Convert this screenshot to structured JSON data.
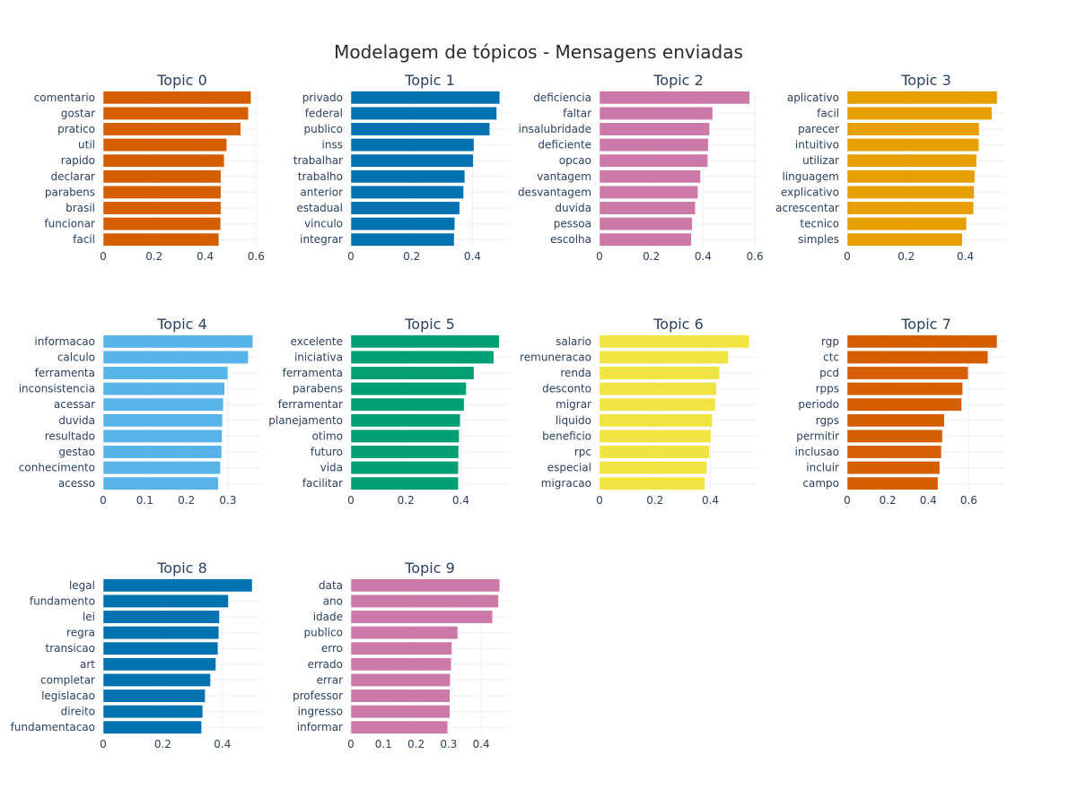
{
  "title": "Modelagem de tópicos - Mensagens enviadas",
  "chart_data": [
    {
      "type": "bar",
      "orientation": "horizontal",
      "title": "Topic 0",
      "color": "#D55E00",
      "xlim": [
        0,
        0.62
      ],
      "xticks": [
        0,
        0.2,
        0.4,
        0.6
      ],
      "xtick_labels": [
        "0",
        "0.2",
        "0.4",
        "0.6"
      ],
      "categories": [
        "comentario",
        "gostar",
        "pratico",
        "util",
        "rapido",
        "declarar",
        "parabens",
        "brasil",
        "funcionar",
        "facil"
      ],
      "values": [
        0.58,
        0.57,
        0.54,
        0.485,
        0.475,
        0.462,
        0.462,
        0.462,
        0.461,
        0.454
      ]
    },
    {
      "type": "bar",
      "orientation": "horizontal",
      "title": "Topic 1",
      "color": "#0072B2",
      "xlim": [
        0,
        0.52
      ],
      "xticks": [
        0,
        0.2,
        0.4
      ],
      "xtick_labels": [
        "0",
        "0.2",
        "0.4"
      ],
      "categories": [
        "privado",
        "federal",
        "publico",
        "inss",
        "trabalhar",
        "trabalho",
        "anterior",
        "estadual",
        "vinculo",
        "integrar"
      ],
      "values": [
        0.49,
        0.48,
        0.457,
        0.405,
        0.403,
        0.375,
        0.371,
        0.358,
        0.342,
        0.34
      ]
    },
    {
      "type": "bar",
      "orientation": "horizontal",
      "title": "Topic 2",
      "color": "#CC79A7",
      "xlim": [
        0,
        0.61
      ],
      "xticks": [
        0,
        0.2,
        0.4,
        0.6
      ],
      "xtick_labels": [
        "0",
        "0.2",
        "0.4",
        "0.6"
      ],
      "categories": [
        "deficiencia",
        "faltar",
        "insalubridade",
        "deficiente",
        "opcao",
        "vantagem",
        "desvantagem",
        "duvida",
        "pessoa",
        "escolha"
      ],
      "values": [
        0.58,
        0.437,
        0.425,
        0.42,
        0.418,
        0.39,
        0.38,
        0.37,
        0.358,
        0.355
      ]
    },
    {
      "type": "bar",
      "orientation": "horizontal",
      "title": "Topic 3",
      "color": "#E69F00",
      "xlim": [
        0,
        0.535
      ],
      "xticks": [
        0,
        0.2,
        0.4
      ],
      "xtick_labels": [
        "0",
        "0.2",
        "0.4"
      ],
      "categories": [
        "aplicativo",
        "facil",
        "parecer",
        "intuitivo",
        "utilizar",
        "linguagem",
        "explicativo",
        "acrescentar",
        "tecnico",
        "simples"
      ],
      "values": [
        0.508,
        0.49,
        0.447,
        0.446,
        0.438,
        0.432,
        0.43,
        0.428,
        0.404,
        0.39
      ]
    },
    {
      "type": "bar",
      "orientation": "horizontal",
      "title": "Topic 4",
      "color": "#56B4E9",
      "xlim": [
        0,
        0.38
      ],
      "xticks": [
        0,
        0.1,
        0.2,
        0.3
      ],
      "xtick_labels": [
        "0",
        "0.1",
        "0.2",
        "0.3"
      ],
      "categories": [
        "informacao",
        "calculo",
        "ferramenta",
        "inconsistencia",
        "acessar",
        "duvida",
        "resultado",
        "gestao",
        "conhecimento",
        "acesso"
      ],
      "values": [
        0.36,
        0.349,
        0.3,
        0.292,
        0.289,
        0.287,
        0.286,
        0.285,
        0.282,
        0.277
      ]
    },
    {
      "type": "bar",
      "orientation": "horizontal",
      "title": "Topic 5",
      "color": "#009E73",
      "xlim": [
        0,
        0.575
      ],
      "xticks": [
        0,
        0.2,
        0.4
      ],
      "xtick_labels": [
        "0",
        "0.2",
        "0.4"
      ],
      "categories": [
        "excelente",
        "iniciativa",
        "ferramenta",
        "parabens",
        "ferramentar",
        "planejamento",
        "otimo",
        "futuro",
        "vida",
        "facilitar"
      ],
      "values": [
        0.54,
        0.52,
        0.448,
        0.42,
        0.412,
        0.398,
        0.394,
        0.392,
        0.391,
        0.391
      ]
    },
    {
      "type": "bar",
      "orientation": "horizontal",
      "title": "Topic 6",
      "color": "#F0E442",
      "xlim": [
        0,
        0.57
      ],
      "xticks": [
        0,
        0.2,
        0.4
      ],
      "xtick_labels": [
        "0",
        "0.2",
        "0.4"
      ],
      "categories": [
        "salario",
        "remuneracao",
        "renda",
        "desconto",
        "migrar",
        "liquido",
        "beneficio",
        "rpc",
        "especial",
        "migracao"
      ],
      "values": [
        0.54,
        0.465,
        0.433,
        0.422,
        0.418,
        0.407,
        0.402,
        0.397,
        0.387,
        0.38
      ]
    },
    {
      "type": "bar",
      "orientation": "horizontal",
      "title": "Topic 7",
      "color": "#D55E00",
      "xlim": [
        0,
        0.78
      ],
      "xticks": [
        0,
        0.2,
        0.4,
        0.6
      ],
      "xtick_labels": [
        "0",
        "0.2",
        "0.4",
        "0.6"
      ],
      "categories": [
        "rgp",
        "ctc",
        "pcd",
        "rpps",
        "periodo",
        "rgps",
        "permitir",
        "inclusao",
        "incluir",
        "campo"
      ],
      "values": [
        0.74,
        0.695,
        0.597,
        0.57,
        0.565,
        0.48,
        0.47,
        0.465,
        0.457,
        0.448
      ]
    },
    {
      "type": "bar",
      "orientation": "horizontal",
      "title": "Topic 8",
      "color": "#0072B2",
      "xlim": [
        0,
        0.53
      ],
      "xticks": [
        0,
        0.2,
        0.4
      ],
      "xtick_labels": [
        "0",
        "0.2",
        "0.4"
      ],
      "categories": [
        "legal",
        "fundamento",
        "lei",
        "regra",
        "transicao",
        "art",
        "completar",
        "legislacao",
        "direito",
        "fundamentacao"
      ],
      "values": [
        0.5,
        0.42,
        0.39,
        0.388,
        0.385,
        0.378,
        0.36,
        0.342,
        0.334,
        0.33
      ]
    },
    {
      "type": "bar",
      "orientation": "horizontal",
      "title": "Topic 9",
      "color": "#CC79A7",
      "xlim": [
        0,
        0.485
      ],
      "xticks": [
        0,
        0.1,
        0.2,
        0.3,
        0.4
      ],
      "xtick_labels": [
        "0",
        "0.1",
        "0.2",
        "0.3",
        "0.4"
      ],
      "categories": [
        "data",
        "ano",
        "idade",
        "publico",
        "erro",
        "errado",
        "errar",
        "professor",
        "ingresso",
        "informar"
      ],
      "values": [
        0.457,
        0.453,
        0.435,
        0.328,
        0.31,
        0.308,
        0.305,
        0.304,
        0.304,
        0.297
      ]
    }
  ]
}
